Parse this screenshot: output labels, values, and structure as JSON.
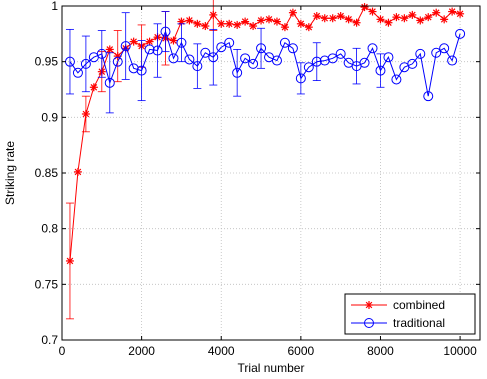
{
  "chart_data": {
    "type": "line",
    "title": "",
    "xlabel": "Trial number",
    "ylabel": "Striking rate",
    "xlim": [
      0,
      10500
    ],
    "ylim": [
      0.7,
      1.0
    ],
    "x_ticks": [
      0,
      2000,
      4000,
      6000,
      8000,
      10000
    ],
    "y_ticks": [
      0.7,
      0.75,
      0.8,
      0.85,
      0.9,
      0.95,
      1.0
    ],
    "x_tick_labels": [
      "0",
      "2000",
      "4000",
      "6000",
      "8000",
      "10000"
    ],
    "y_tick_labels": [
      "0.7",
      "0.75",
      "0.8",
      "0.85",
      "0.9",
      "0.95",
      "1"
    ],
    "grid": true,
    "legend_position": "bottom-right",
    "series": [
      {
        "name": "combined",
        "color": "#ff0000",
        "marker": "asterisk",
        "x": [
          200,
          400,
          600,
          800,
          1000,
          1200,
          1400,
          1600,
          1800,
          2000,
          2200,
          2400,
          2600,
          2800,
          3000,
          3200,
          3400,
          3600,
          3800,
          4000,
          4200,
          4400,
          4600,
          4800,
          5000,
          5200,
          5400,
          5600,
          5800,
          6000,
          6200,
          6400,
          6600,
          6800,
          7000,
          7200,
          7400,
          7600,
          7800,
          8000,
          8200,
          8400,
          8600,
          8800,
          9000,
          9200,
          9400,
          9600,
          9800,
          10000
        ],
        "y": [
          0.771,
          0.851,
          0.903,
          0.927,
          0.941,
          0.961,
          0.955,
          0.962,
          0.968,
          0.964,
          0.968,
          0.972,
          0.971,
          0.969,
          0.986,
          0.987,
          0.984,
          0.982,
          0.992,
          0.984,
          0.984,
          0.983,
          0.986,
          0.982,
          0.987,
          0.988,
          0.986,
          0.981,
          0.994,
          0.984,
          0.981,
          0.991,
          0.989,
          0.989,
          0.991,
          0.988,
          0.985,
          0.999,
          0.995,
          0.988,
          0.985,
          0.99,
          0.989,
          0.992,
          0.987,
          0.99,
          0.994,
          0.988,
          0.995,
          0.993
        ],
        "err": [
          0.052,
          0.0,
          0.016,
          0.0,
          0.018,
          0.0,
          0.023,
          0.0,
          0.0,
          0.019,
          0.0,
          0.0,
          0.024,
          0.0,
          0.0,
          0.0,
          0.0,
          0.0,
          0.014,
          0.0,
          0.0,
          0.0,
          0.0,
          0.0,
          0.0,
          0.0,
          0.0,
          0.0,
          0.0,
          0.0,
          0.0,
          0.0,
          0.0,
          0.0,
          0.0,
          0.0,
          0.0,
          0.0,
          0.0,
          0.0,
          0.0,
          0.0,
          0.0,
          0.0,
          0.0,
          0.0,
          0.0,
          0.0,
          0.0,
          0.0
        ]
      },
      {
        "name": "traditional",
        "color": "#0000ff",
        "marker": "circle",
        "x": [
          200,
          400,
          600,
          800,
          1000,
          1200,
          1400,
          1600,
          1800,
          2000,
          2200,
          2400,
          2600,
          2800,
          3000,
          3200,
          3400,
          3600,
          3800,
          4000,
          4200,
          4400,
          4600,
          4800,
          5000,
          5200,
          5400,
          5600,
          5800,
          6000,
          6200,
          6400,
          6600,
          6800,
          7000,
          7200,
          7400,
          7600,
          7800,
          8000,
          8200,
          8400,
          8600,
          8800,
          9000,
          9200,
          9400,
          9600,
          9800,
          10000
        ],
        "y": [
          0.95,
          0.94,
          0.948,
          0.954,
          0.957,
          0.931,
          0.95,
          0.964,
          0.944,
          0.942,
          0.961,
          0.96,
          0.977,
          0.953,
          0.967,
          0.952,
          0.946,
          0.958,
          0.954,
          0.963,
          0.967,
          0.94,
          0.953,
          0.948,
          0.962,
          0.954,
          0.951,
          0.967,
          0.962,
          0.935,
          0.945,
          0.95,
          0.951,
          0.953,
          0.957,
          0.949,
          0.946,
          0.949,
          0.962,
          0.942,
          0.954,
          0.934,
          0.945,
          0.948,
          0.957,
          0.919,
          0.958,
          0.962,
          0.951,
          0.975
        ],
        "err": [
          0.029,
          0.0,
          0.025,
          0.0,
          0.021,
          0.027,
          0.0,
          0.03,
          0.0,
          0.027,
          0.0,
          0.024,
          0.018,
          0.0,
          0.017,
          0.0,
          0.02,
          0.0,
          0.025,
          0.0,
          0.0,
          0.021,
          0.0,
          0.0,
          0.018,
          0.0,
          0.0,
          0.0,
          0.0,
          0.014,
          0.0,
          0.017,
          0.0,
          0.0,
          0.0,
          0.0,
          0.016,
          0.0,
          0.0,
          0.015,
          0.0,
          0.0,
          0.0,
          0.0,
          0.0,
          0.0,
          0.0,
          0.0,
          0.0,
          0.0
        ]
      }
    ]
  }
}
